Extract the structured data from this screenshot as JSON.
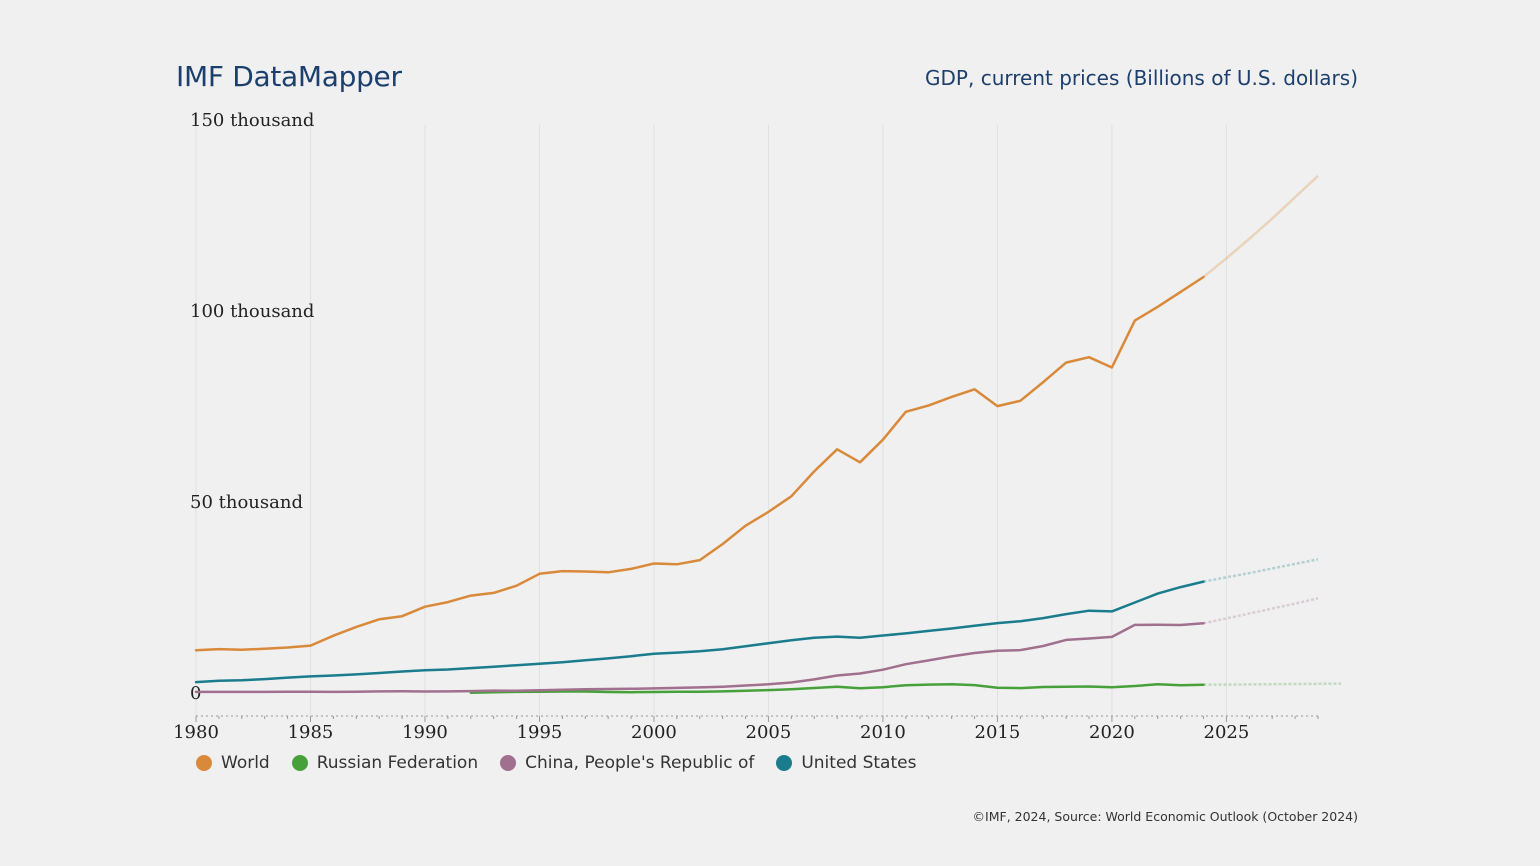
{
  "header": {
    "brand": "IMF DataMapper",
    "indicator": "GDP, current prices (Billions of U.S. dollars)"
  },
  "credit": "©IMF, 2024, Source: World Economic Outlook (October 2024)",
  "chart_data": {
    "type": "line",
    "title": "GDP, current prices (Billions of U.S. dollars)",
    "xlim": [
      1980,
      2029
    ],
    "ylim": [
      0,
      150000
    ],
    "x_ticks": [
      1980,
      1985,
      1990,
      1995,
      2000,
      2005,
      2010,
      2015,
      2020,
      2025
    ],
    "y_ticks": [
      {
        "value": 0,
        "label": "0"
      },
      {
        "value": 50000,
        "label": "50 thousand"
      },
      {
        "value": 100000,
        "label": "100 thousand"
      },
      {
        "value": 150000,
        "label": "150 thousand"
      }
    ],
    "grid": "vertical",
    "legend_position": "bottom-left",
    "projection_start": 2024,
    "series": [
      {
        "name": "World",
        "color": "#d9893a",
        "start_year": 1980,
        "values": [
          11200,
          11500,
          11300,
          11600,
          11900,
          12400,
          15000,
          17300,
          19300,
          20100,
          22600,
          23800,
          25500,
          26200,
          28100,
          31200,
          31900,
          31800,
          31600,
          32500,
          33900,
          33700,
          34800,
          39000,
          43800,
          47400,
          51500,
          58000,
          63800,
          60400,
          66300,
          73600,
          75300,
          77500,
          79500,
          75100,
          76500,
          81400,
          86500,
          87900,
          85200,
          97500,
          101100,
          105000,
          108900,
          113800,
          118900,
          124200,
          129800,
          135400
        ]
      },
      {
        "name": "Russian Federation",
        "color": "#47a13a",
        "start_year": 1992,
        "values": [
          90,
          190,
          280,
          310,
          390,
          400,
          270,
          200,
          260,
          310,
          350,
          430,
          590,
          770,
          990,
          1300,
          1660,
          1220,
          1520,
          2050,
          2210,
          2290,
          2060,
          1360,
          1280,
          1570,
          1660,
          1690,
          1490,
          1840,
          2270,
          2020,
          2160,
          2200,
          2250,
          2300,
          2350,
          2400,
          2450
        ]
      },
      {
        "name": "China, People's Republic of",
        "color": "#a0708e",
        "start_year": 1980,
        "values": [
          300,
          290,
          280,
          300,
          310,
          310,
          300,
          330,
          410,
          460,
          400,
          420,
          500,
          620,
          570,
          740,
          870,
          970,
          1040,
          1090,
          1210,
          1340,
          1470,
          1660,
          1960,
          2290,
          2750,
          3550,
          4590,
          5100,
          6090,
          7550,
          8530,
          9570,
          10480,
          11060,
          11230,
          12310,
          13890,
          14280,
          14690,
          17820,
          17880,
          17790,
          18270,
          19500,
          20800,
          22100,
          23400,
          24800
        ]
      },
      {
        "name": "United States",
        "color": "#1a7c8c",
        "start_year": 1980,
        "values": [
          2860,
          3210,
          3350,
          3640,
          4040,
          4350,
          4590,
          4880,
          5240,
          5640,
          5960,
          6160,
          6520,
          6860,
          7290,
          7640,
          8070,
          8580,
          9060,
          9630,
          10250,
          10580,
          10940,
          11460,
          12220,
          13040,
          13810,
          14470,
          14770,
          14480,
          15050,
          15600,
          16250,
          16880,
          17610,
          18300,
          18800,
          19610,
          20660,
          21540,
          21350,
          23680,
          26010,
          27720,
          29170,
          30300,
          31400,
          32600,
          33800,
          35000
        ]
      }
    ]
  }
}
